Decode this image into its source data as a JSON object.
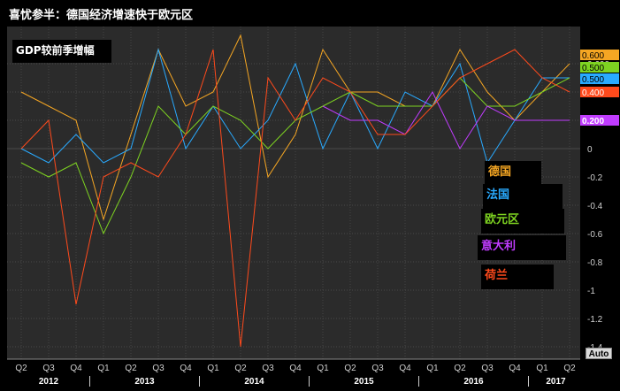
{
  "window": {
    "title": "喜忧参半：德国经济增速快于欧元区",
    "auto_label": "Auto"
  },
  "chart_data": {
    "type": "line",
    "title": "喜忧参半：德国经济增速快于欧元区",
    "subtitle": "GDP较前季增幅",
    "ylim": [
      -1.5,
      0.8
    ],
    "yticks": [
      0.6,
      0.4,
      0.2,
      0,
      -0.2,
      -0.4,
      -0.6,
      -0.8,
      -1,
      -1.2,
      -1.4
    ],
    "ytick_labels": [
      "0.600",
      "0.400",
      "0.200",
      "0",
      "-0.2",
      "-0.4",
      "-0.6",
      "-0.8",
      "-1",
      "-1.2",
      "-1.4"
    ],
    "x": [
      "Q2",
      "Q3",
      "Q4",
      "Q1",
      "Q2",
      "Q3",
      "Q4",
      "Q1",
      "Q2",
      "Q3",
      "Q4",
      "Q1",
      "Q2",
      "Q3",
      "Q4",
      "Q1",
      "Q2",
      "Q3",
      "Q4",
      "Q1",
      "Q2"
    ],
    "years": [
      {
        "label": "2012",
        "start": 0,
        "end": 2
      },
      {
        "label": "2013",
        "start": 3,
        "end": 6
      },
      {
        "label": "2014",
        "start": 7,
        "end": 10
      },
      {
        "label": "2015",
        "start": 11,
        "end": 14
      },
      {
        "label": "2016",
        "start": 15,
        "end": 18
      },
      {
        "label": "2017",
        "start": 19,
        "end": 20
      }
    ],
    "grid": true,
    "legend_position": "right",
    "series": [
      {
        "name": "德国",
        "color": "#f5a623",
        "values": [
          0.4,
          0.3,
          0.2,
          -0.5,
          0.1,
          0.7,
          0.3,
          0.4,
          0.8,
          -0.2,
          0.1,
          0.7,
          0.4,
          0.4,
          0.3,
          0.3,
          0.7,
          0.4,
          0.2,
          0.4,
          0.6
        ],
        "last_label": "0.600"
      },
      {
        "name": "法国",
        "color": "#29aaff",
        "values": [
          0.0,
          -0.1,
          0.1,
          -0.1,
          0.0,
          0.7,
          0.0,
          0.3,
          0.0,
          0.2,
          0.6,
          0.0,
          0.4,
          0.0,
          0.4,
          0.3,
          0.6,
          -0.1,
          0.2,
          0.5,
          0.5
        ],
        "last_label": "0.500"
      },
      {
        "name": "欧元区",
        "color": "#7ed321",
        "values": [
          -0.1,
          -0.2,
          -0.1,
          -0.6,
          -0.2,
          0.3,
          0.1,
          0.3,
          0.2,
          0.0,
          0.2,
          0.3,
          0.4,
          0.3,
          0.3,
          0.3,
          0.5,
          0.3,
          0.3,
          0.4,
          0.5
        ],
        "last_label": "0.500"
      },
      {
        "name": "意大利",
        "color": "#c13cff",
        "values": [
          null,
          null,
          null,
          null,
          null,
          null,
          null,
          null,
          null,
          null,
          null,
          0.3,
          0.2,
          0.2,
          0.1,
          0.4,
          0.0,
          0.3,
          0.2,
          0.2,
          0.2
        ],
        "last_label": "0.200"
      },
      {
        "name": "荷兰",
        "color": "#ff4a1c",
        "values": [
          0.0,
          0.2,
          -1.1,
          -0.2,
          -0.1,
          -0.2,
          0.1,
          0.7,
          -1.4,
          0.5,
          0.2,
          0.5,
          0.4,
          0.1,
          0.1,
          0.3,
          0.5,
          0.6,
          0.7,
          0.5,
          0.4
        ],
        "last_label": "0.400"
      }
    ]
  }
}
